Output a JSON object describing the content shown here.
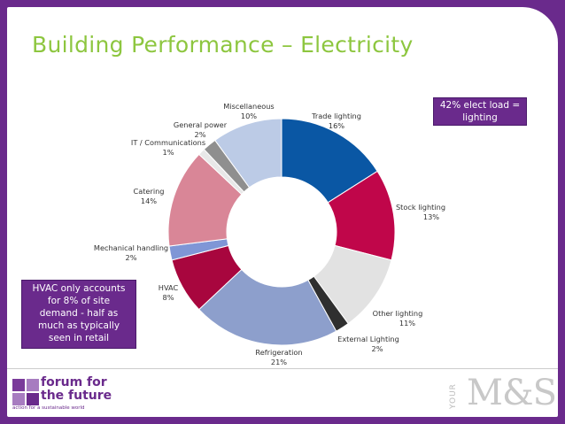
{
  "title": "Building Performance – Electricity",
  "callouts": {
    "elect_load": "42% elect load = lighting",
    "hvac": "HVAC only accounts for 8% of site demand - half as much as typically seen in retail"
  },
  "logos": {
    "forum_line1": "forum for",
    "forum_line2": "the future",
    "forum_tagline": "action for a sustainable world",
    "ms_prefix": "YOUR",
    "ms_brand": "M&S"
  },
  "colors": {
    "brand_purple": "#6a2a8c",
    "title_green": "#8dc63f"
  },
  "chart_data": {
    "type": "pie",
    "donut": true,
    "slices": [
      {
        "label": "Trade lighting",
        "value": 16,
        "value_label": "16%",
        "color": "#0a57a4"
      },
      {
        "label": "Stock lighting",
        "value": 13,
        "value_label": "13%",
        "color": "#c0064a"
      },
      {
        "label": "Other lighting",
        "value": 11,
        "value_label": "11%",
        "color": "#e2e2e2"
      },
      {
        "label": "External Lighting",
        "value": 2,
        "value_label": "2%",
        "color": "#2f2f2f"
      },
      {
        "label": "Refrigeration",
        "value": 21,
        "value_label": "21%",
        "color": "#8d9fcc"
      },
      {
        "label": "HVAC",
        "value": 8,
        "value_label": "8%",
        "color": "#a8063e"
      },
      {
        "label": "Mechanical handling",
        "value": 2,
        "value_label": "2%",
        "color": "#7f96d6"
      },
      {
        "label": "Catering",
        "value": 14,
        "value_label": "14%",
        "color": "#d98697"
      },
      {
        "label": "IT / Communications",
        "value": 1,
        "value_label": "1%",
        "color": "#e8e8e8"
      },
      {
        "label": "General power",
        "value": 2,
        "value_label": "2%",
        "color": "#8f8f8f"
      },
      {
        "label": "Miscellaneous",
        "value": 10,
        "value_label": "10%",
        "color": "#bccbe6"
      }
    ]
  }
}
